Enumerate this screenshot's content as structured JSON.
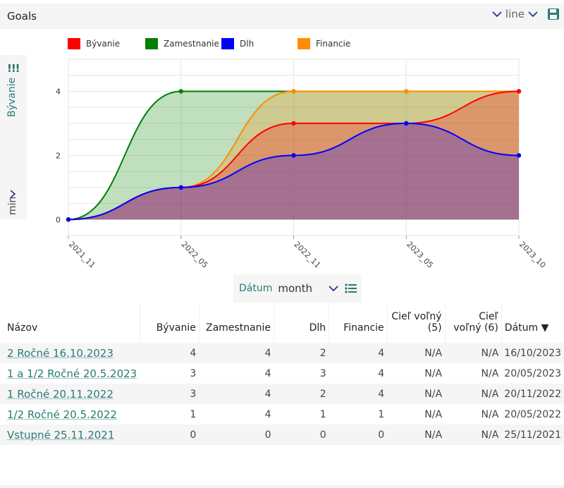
{
  "header": {
    "title": "Goals",
    "chart_type": "line"
  },
  "side": {
    "icon": "!!!",
    "metric": "Bývanie",
    "agg": "min"
  },
  "legend": [
    {
      "label": "Bývanie",
      "color": "#ff0000"
    },
    {
      "label": "Zamestnanie",
      "color": "#008000"
    },
    {
      "label": "Dlh",
      "color": "#0000ff"
    },
    {
      "label": "Financie",
      "color": "#ff8c00"
    }
  ],
  "chart_data": {
    "type": "area",
    "x": [
      "2021_11",
      "2022_05",
      "2022_11",
      "2023_05",
      "2023_10"
    ],
    "ylim": [
      -0.5,
      5
    ],
    "yticks": [
      0,
      2,
      4
    ],
    "series": [
      {
        "name": "Zamestnanie",
        "color": "#008000",
        "values": [
          0,
          4,
          4,
          4,
          4
        ]
      },
      {
        "name": "Financie",
        "color": "#ff8c00",
        "values": [
          0,
          1,
          4,
          4,
          4
        ]
      },
      {
        "name": "Bývanie",
        "color": "#ff0000",
        "values": [
          0,
          1,
          3,
          3,
          4
        ]
      },
      {
        "name": "Dlh",
        "color": "#0000ff",
        "values": [
          0,
          1,
          2,
          3,
          2
        ]
      }
    ],
    "grid": true
  },
  "date_control": {
    "label": "Dátum",
    "value": "month"
  },
  "table": {
    "columns": [
      "Názov",
      "Bývanie",
      "Zamestnanie",
      "Dlh",
      "Financie",
      "Cieľ voľný (5)",
      "Cieľ voľný (6)",
      "Dátum ▼"
    ],
    "rows": [
      [
        "2 Ročné 16.10.2023",
        "4",
        "4",
        "2",
        "4",
        "N/A",
        "N/A",
        "16/10/2023"
      ],
      [
        "1 a 1/2 Ročné 20.5.2023",
        "3",
        "4",
        "3",
        "4",
        "N/A",
        "N/A",
        "20/05/2023"
      ],
      [
        "1 Ročné 20.11.2022",
        "3",
        "4",
        "2",
        "4",
        "N/A",
        "N/A",
        "20/11/2022"
      ],
      [
        "1/2 Ročné 20.5.2022",
        "1",
        "4",
        "1",
        "1",
        "N/A",
        "N/A",
        "20/05/2022"
      ],
      [
        "Vstupné 25.11.2021",
        "0",
        "0",
        "0",
        "0",
        "N/A",
        "N/A",
        "25/11/2021"
      ]
    ]
  }
}
